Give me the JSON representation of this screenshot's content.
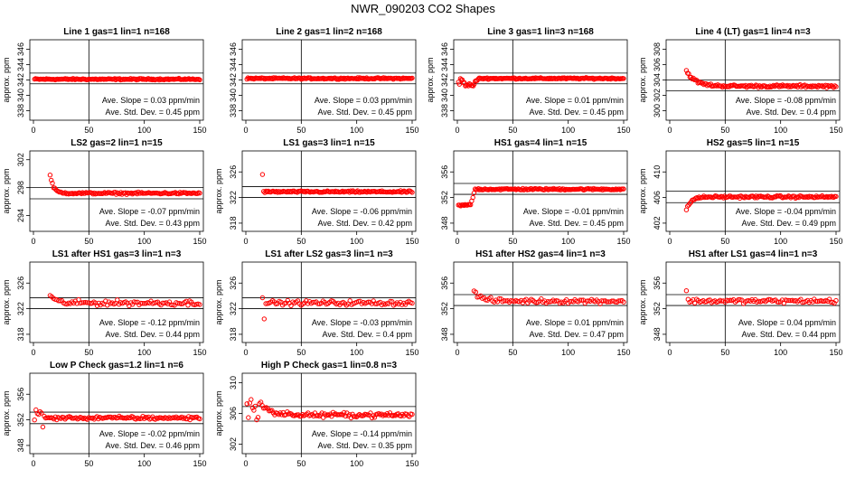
{
  "title": "NWR_090203  CO2 Shapes",
  "styles": {
    "point_color": "#ff0000",
    "line_color": "#000000"
  },
  "chart_data": [
    {
      "type": "scatter",
      "title": "Line 1 gas=1 lin=1 n=168",
      "ylabel": "approx. ppm",
      "xlim": [
        0,
        150
      ],
      "ylim": [
        337,
        347
      ],
      "xticks": [
        0,
        50,
        100,
        150
      ],
      "yticks": [
        338,
        340,
        342,
        344,
        346
      ],
      "hlines": [
        341.5,
        342.9
      ],
      "vline": 50,
      "shape": "flat",
      "level": 342.1,
      "noise": 0.08,
      "x_start": 1,
      "x_end": 150,
      "n_points": 168,
      "slope_label": "Ave. Slope =  0.03  ppm/min",
      "std_label": "Ave. Std. Dev. =  0.45  ppm"
    },
    {
      "type": "scatter",
      "title": "Line 2 gas=1 lin=2 n=168",
      "ylabel": "",
      "xlim": [
        0,
        150
      ],
      "ylim": [
        337,
        347
      ],
      "xticks": [
        0,
        50,
        100,
        150
      ],
      "yticks": [
        338,
        340,
        342,
        344,
        346
      ],
      "hlines": [
        341.5,
        342.9
      ],
      "vline": 50,
      "shape": "flat",
      "level": 342.2,
      "noise": 0.08,
      "x_start": 1,
      "x_end": 150,
      "n_points": 168,
      "slope_label": "Ave. Slope =  0.03  ppm/min",
      "std_label": "Ave. Std. Dev. =  0.45  ppm"
    },
    {
      "type": "scatter",
      "title": "Line 3 gas=1 lin=3 n=168",
      "ylabel": "approx. ppm",
      "xlim": [
        0,
        150
      ],
      "ylim": [
        337,
        347
      ],
      "xticks": [
        0,
        50,
        100,
        150
      ],
      "yticks": [
        338,
        340,
        342,
        344,
        346
      ],
      "hlines": [
        341.5,
        342.9
      ],
      "vline": 50,
      "shape": "dip",
      "level": 342.2,
      "noise": 0.08,
      "x_start": 1,
      "x_end": 150,
      "n_points": 168,
      "slope_label": "Ave. Slope =  0.01  ppm/min",
      "std_label": "Ave. Std. Dev. =  0.45  ppm"
    },
    {
      "type": "scatter",
      "title": "Line 4 (LT) gas=1 lin=4 n=3",
      "ylabel": "approx. ppm",
      "xlim": [
        0,
        150
      ],
      "ylim": [
        299,
        309
      ],
      "xticks": [
        0,
        50,
        100,
        150
      ],
      "yticks": [
        300,
        302,
        304,
        306,
        308
      ],
      "hlines": [
        302.6,
        304.0
      ],
      "vline": 50,
      "shape": "decay",
      "level": 303.2,
      "start_value": 305.2,
      "decay": 8,
      "noise": 0.15,
      "x_start": 15,
      "x_end": 150,
      "n_points": 130,
      "slope_label": "Ave. Slope = -0.08  ppm/min",
      "std_label": "Ave. Std. Dev. =  0.4  ppm"
    },
    {
      "type": "scatter",
      "title": "LS2 gas=2 lin=1 n=15",
      "ylabel": "approx. ppm",
      "xlim": [
        0,
        150
      ],
      "ylim": [
        292,
        303
      ],
      "xticks": [
        0,
        50,
        100,
        150
      ],
      "yticks": [
        294,
        298,
        302
      ],
      "hlines": [
        296.4,
        298.0
      ],
      "vline": 50,
      "shape": "decay",
      "level": 297.2,
      "start_value": 299.8,
      "decay": 3,
      "noise": 0.12,
      "x_start": 15,
      "x_end": 150,
      "n_points": 130,
      "slope_label": "Ave. Slope = -0.07  ppm/min",
      "std_label": "Ave. Std. Dev. =  0.43  ppm"
    },
    {
      "type": "scatter",
      "title": "LS1 gas=3 lin=1 n=15",
      "ylabel": "approx. ppm",
      "xlim": [
        0,
        150
      ],
      "ylim": [
        317,
        329
      ],
      "xticks": [
        0,
        50,
        100,
        150
      ],
      "yticks": [
        318,
        322,
        326
      ],
      "hlines": [
        322.0,
        323.7
      ],
      "vline": 50,
      "shape": "spike",
      "level": 322.9,
      "start_value": 325.6,
      "noise": 0.12,
      "x_start": 15,
      "x_end": 150,
      "n_points": 130,
      "slope_label": "Ave. Slope = -0.06  ppm/min",
      "std_label": "Ave. Std. Dev. =  0.42  ppm"
    },
    {
      "type": "scatter",
      "title": "HS1 gas=4 lin=1 n=15",
      "ylabel": "",
      "xlim": [
        0,
        150
      ],
      "ylim": [
        347,
        359
      ],
      "xticks": [
        0,
        50,
        100,
        150
      ],
      "yticks": [
        348,
        352,
        356
      ],
      "hlines": [
        352.5,
        354.2
      ],
      "vline": 50,
      "shape": "step",
      "level": 353.3,
      "start_value": 350.8,
      "step_at": 12,
      "noise": 0.12,
      "x_start": 1,
      "x_end": 150,
      "n_points": 150,
      "slope_label": "Ave. Slope = -0.01  ppm/min",
      "std_label": "Ave. Std. Dev. =  0.45  ppm"
    },
    {
      "type": "scatter",
      "title": "HS2 gas=5 lin=1 n=15",
      "ylabel": "approx. ppm",
      "xlim": [
        0,
        150
      ],
      "ylim": [
        401,
        413
      ],
      "xticks": [
        0,
        50,
        100,
        150
      ],
      "yticks": [
        402,
        406,
        410
      ],
      "hlines": [
        405.2,
        407.0
      ],
      "vline": 50,
      "shape": "rise",
      "level": 406.1,
      "start_value": 404.0,
      "decay": 4,
      "noise": 0.15,
      "x_start": 15,
      "x_end": 150,
      "n_points": 130,
      "slope_label": "Ave. Slope = -0.04  ppm/min",
      "std_label": "Ave. Std. Dev. =  0.49  ppm"
    },
    {
      "type": "scatter",
      "title": "LS1 after HS1 gas=3 lin=1 n=3",
      "ylabel": "approx. ppm",
      "xlim": [
        0,
        150
      ],
      "ylim": [
        317,
        329
      ],
      "xticks": [
        0,
        50,
        100,
        150
      ],
      "yticks": [
        318,
        322,
        326
      ],
      "hlines": [
        322.0,
        323.7
      ],
      "vline": 50,
      "shape": "decay",
      "level": 322.9,
      "start_value": 324.3,
      "decay": 4,
      "noise": 0.35,
      "x_start": 15,
      "x_end": 150,
      "n_points": 90,
      "slope_label": "Ave. Slope = -0.12  ppm/min",
      "std_label": "Ave. Std. Dev. =  0.44  ppm"
    },
    {
      "type": "scatter",
      "title": "LS1 after LS2 gas=3 lin=1 n=3",
      "ylabel": "approx. ppm",
      "xlim": [
        0,
        150
      ],
      "ylim": [
        317,
        329
      ],
      "xticks": [
        0,
        50,
        100,
        150
      ],
      "yticks": [
        318,
        322,
        326
      ],
      "hlines": [
        322.0,
        323.7
      ],
      "vline": 50,
      "shape": "dipstart",
      "level": 322.9,
      "start_value": 320.4,
      "noise": 0.3,
      "x_start": 15,
      "x_end": 150,
      "n_points": 90,
      "slope_label": "Ave. Slope = -0.03  ppm/min",
      "std_label": "Ave. Std. Dev. =  0.4  ppm"
    },
    {
      "type": "scatter",
      "title": "HS1 after HS2 gas=4 lin=1 n=3",
      "ylabel": "",
      "xlim": [
        0,
        150
      ],
      "ylim": [
        347,
        359
      ],
      "xticks": [
        0,
        50,
        100,
        150
      ],
      "yticks": [
        348,
        352,
        356
      ],
      "hlines": [
        352.5,
        354.2
      ],
      "vline": 50,
      "shape": "decay",
      "level": 353.2,
      "start_value": 354.8,
      "decay": 6,
      "noise": 0.3,
      "x_start": 15,
      "x_end": 150,
      "n_points": 90,
      "slope_label": "Ave. Slope =  0.01  ppm/min",
      "std_label": "Ave. Std. Dev. =  0.47  ppm"
    },
    {
      "type": "scatter",
      "title": "HS1 after LS1 gas=4 lin=1 n=3",
      "ylabel": "approx. ppm",
      "xlim": [
        0,
        150
      ],
      "ylim": [
        347,
        359
      ],
      "xticks": [
        0,
        50,
        100,
        150
      ],
      "yticks": [
        348,
        352,
        356
      ],
      "hlines": [
        352.5,
        354.2
      ],
      "vline": 50,
      "shape": "spike",
      "level": 353.2,
      "start_value": 354.8,
      "noise": 0.28,
      "x_start": 15,
      "x_end": 150,
      "n_points": 90,
      "slope_label": "Ave. Slope =  0.04  ppm/min",
      "std_label": "Ave. Std. Dev. =  0.44  ppm"
    },
    {
      "type": "scatter",
      "title": "Low P Check gas=1.2 lin=1 n=6",
      "ylabel": "approx. ppm",
      "xlim": [
        0,
        150
      ],
      "ylim": [
        347,
        359
      ],
      "xticks": [
        0,
        50,
        100,
        150
      ],
      "yticks": [
        348,
        352,
        356
      ],
      "hlines": [
        351.4,
        353.2
      ],
      "vline": 50,
      "shape": "scatterstart",
      "level": 352.3,
      "start_value": 351.0,
      "noise": 0.22,
      "x_start": 1,
      "x_end": 150,
      "n_points": 120,
      "slope_label": "Ave. Slope = -0.02  ppm/min",
      "std_label": "Ave. Std. Dev. =  0.46  ppm"
    },
    {
      "type": "scatter",
      "title": "High P Check gas=1 lin=0.8 n=3",
      "ylabel": "approx. ppm",
      "xlim": [
        0,
        150
      ],
      "ylim": [
        301,
        311
      ],
      "xticks": [
        0,
        50,
        100,
        150
      ],
      "yticks": [
        302,
        306,
        310
      ],
      "hlines": [
        305.0,
        306.9
      ],
      "vline": 50,
      "shape": "scatterdecay",
      "level": 305.8,
      "start_value": 307.6,
      "decay": 8,
      "noise": 0.25,
      "x_start": 1,
      "x_end": 150,
      "n_points": 120,
      "slope_label": "Ave. Slope = -0.14  ppm/min",
      "std_label": "Ave. Std. Dev. =  0.35  ppm"
    }
  ]
}
